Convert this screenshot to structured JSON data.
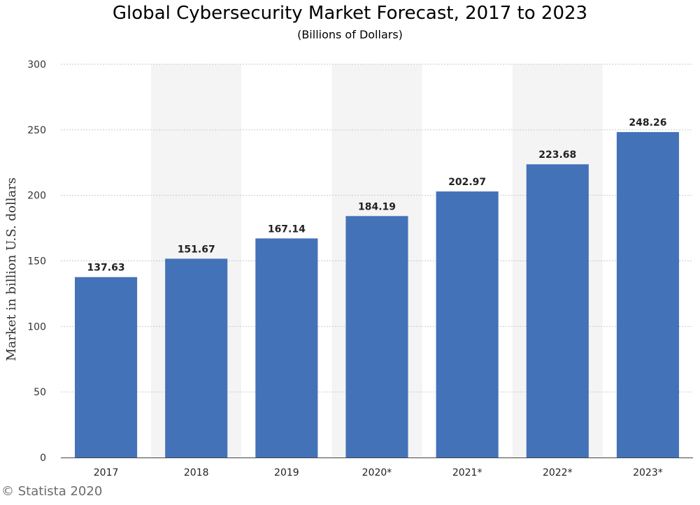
{
  "chart_data": {
    "type": "bar",
    "title": "Global Cybersecurity Market Forecast, 2017 to 2023",
    "subtitle": "(Billions of Dollars)",
    "xlabel": "",
    "ylabel": "Market in billion U.S. dollars",
    "categories": [
      "2017",
      "2018",
      "2019",
      "2020*",
      "2021*",
      "2022*",
      "2023*"
    ],
    "values": [
      137.63,
      151.67,
      167.14,
      184.19,
      202.97,
      223.68,
      248.26
    ],
    "value_labels": [
      "137.63",
      "151.67",
      "167.14",
      "184.19",
      "202.97",
      "223.68",
      "248.26"
    ],
    "ylim": [
      0,
      300
    ],
    "yticks": [
      "0",
      "50",
      "100",
      "150",
      "200",
      "250",
      "300"
    ],
    "grid": true,
    "legend": "none",
    "bar_color": "#4472b8",
    "band_color": "#f4f4f4",
    "credit": "© Statista 2020"
  }
}
